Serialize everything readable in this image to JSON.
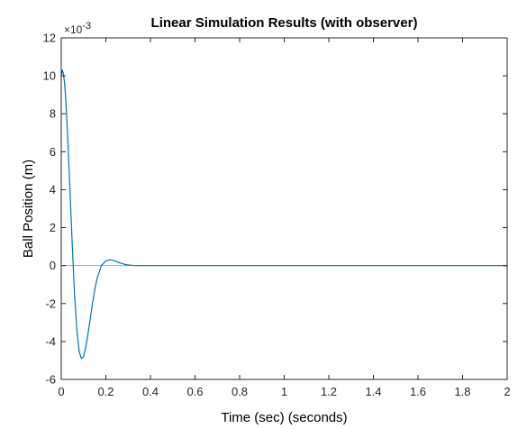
{
  "chart_data": {
    "type": "line",
    "title": "Linear Simulation Results (with observer)",
    "xlabel": "Time (sec) (seconds)",
    "ylabel": "Ball Position (m)",
    "y_exponent_label": "×10",
    "y_exponent_power": "-3",
    "xlim": [
      0,
      2
    ],
    "ylim": [
      -6,
      12
    ],
    "x_ticks": [
      0,
      0.2,
      0.4,
      0.6,
      0.8,
      1,
      1.2,
      1.4,
      1.6,
      1.8,
      2
    ],
    "x_tick_labels": [
      "0",
      "0.2",
      "0.4",
      "0.6",
      "0.8",
      "1",
      "1.2",
      "1.4",
      "1.6",
      "1.8",
      "2"
    ],
    "y_ticks": [
      -6,
      -4,
      -2,
      0,
      2,
      4,
      6,
      8,
      10,
      12
    ],
    "y_tick_labels": [
      "-6",
      "-4",
      "-2",
      "0",
      "2",
      "4",
      "6",
      "8",
      "10",
      "12"
    ],
    "grid": false,
    "reference_line": {
      "y": 0,
      "color": "#a6a6a6"
    },
    "series": [
      {
        "color": "#0072bd",
        "x": [
          0,
          0.005,
          0.01,
          0.015,
          0.02,
          0.03,
          0.04,
          0.05,
          0.06,
          0.07,
          0.08,
          0.09,
          0.1,
          0.11,
          0.12,
          0.13,
          0.14,
          0.15,
          0.16,
          0.18,
          0.2,
          0.22,
          0.24,
          0.26,
          0.28,
          0.3,
          0.32,
          0.34,
          0.36,
          0.4,
          0.5,
          0.7,
          1,
          1.5,
          2
        ],
        "y": [
          10,
          10.3,
          10.1,
          9.6,
          8.8,
          6.5,
          3.7,
          0.9,
          -1.6,
          -3.4,
          -4.5,
          -4.9,
          -4.8,
          -4.3,
          -3.6,
          -2.8,
          -2.0,
          -1.3,
          -0.7,
          0.0,
          0.25,
          0.3,
          0.25,
          0.15,
          0.08,
          0.03,
          0.01,
          0.0,
          0.0,
          0.0,
          0.0,
          0.0,
          0.0,
          0.0,
          0.0
        ]
      }
    ]
  }
}
